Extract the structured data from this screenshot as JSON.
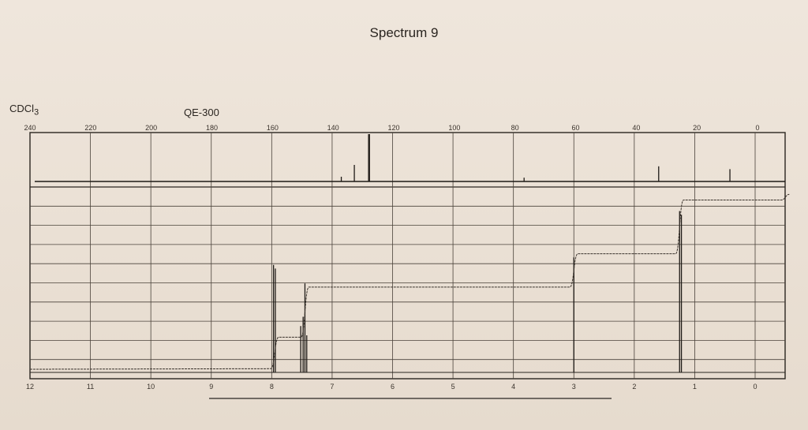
{
  "page": {
    "title": "Spectrum 9",
    "solvent": "CDCl",
    "solvent_sub": "3",
    "instrument": "QE-300"
  },
  "chart_data": [
    {
      "type": "line",
      "title": "",
      "xlabel": "",
      "axis": "13C ppm (top)",
      "xlim": [
        240,
        0
      ],
      "x_ticks": [
        "240",
        "220",
        "200",
        "180",
        "160",
        "140",
        "120",
        "100",
        "80",
        "60",
        "40",
        "20",
        "0"
      ],
      "peaks": [
        {
          "ppm": 137.3,
          "height": 0.1
        },
        {
          "ppm": 133.0,
          "height": 0.35
        },
        {
          "ppm": 128.3,
          "height": 1.0
        },
        {
          "ppm": 128.0,
          "height": 1.0
        },
        {
          "ppm": 77.0,
          "height": 0.08
        },
        {
          "ppm": 32.6,
          "height": 0.32
        },
        {
          "ppm": 9.1,
          "height": 0.26
        }
      ],
      "grid": true
    },
    {
      "type": "line",
      "title": "",
      "xlabel": "",
      "axis": "1H ppm (bottom)",
      "xlim": [
        12,
        -0.5
      ],
      "x_ticks": [
        "12",
        "11",
        "10",
        "9",
        "8",
        "7",
        "6",
        "5",
        "4",
        "3",
        "2",
        "1",
        "0"
      ],
      "peaks": [
        {
          "ppm": 7.97,
          "height": 0.58
        },
        {
          "ppm": 7.94,
          "height": 0.56
        },
        {
          "ppm": 7.52,
          "height": 0.25
        },
        {
          "ppm": 7.48,
          "height": 0.3
        },
        {
          "ppm": 7.45,
          "height": 0.48
        },
        {
          "ppm": 7.42,
          "height": 0.2
        },
        {
          "ppm": 3.0,
          "height": 0.62
        },
        {
          "ppm": 1.25,
          "height": 0.87
        },
        {
          "ppm": 1.22,
          "height": 0.85
        }
      ],
      "integration_steps": [
        {
          "ppm": 7.95,
          "level": 0.19
        },
        {
          "ppm": 7.45,
          "level": 0.46
        },
        {
          "ppm": 3.0,
          "level": 0.64
        },
        {
          "ppm": 1.25,
          "level": 0.93
        },
        {
          "ppm": -0.5,
          "level": 0.96
        }
      ],
      "grid": true
    }
  ]
}
